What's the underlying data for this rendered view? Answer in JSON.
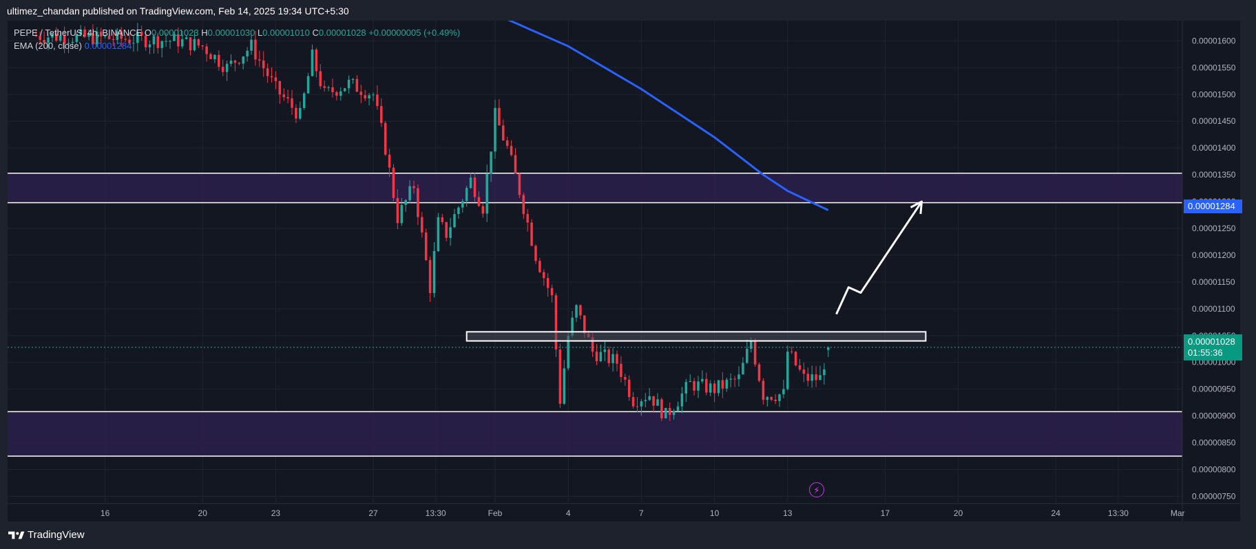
{
  "header": {
    "publisher_text": "ultimez_chandan published on TradingView.com, Feb 14, 2025 19:34 UTC+5:30"
  },
  "legend": {
    "symbol": "PEPE / TetherUS, 4h, BINANCE",
    "open_label": "O",
    "open_value": "0.00001023",
    "high_label": "H",
    "high_value": "0.00001030",
    "low_label": "L",
    "low_value": "0.00001010",
    "close_label": "C",
    "close_value": "0.00001028",
    "change": "+0.00000005 (+0.49%)",
    "ema_label": "EMA (200, close)",
    "ema_value": "0.00001284"
  },
  "price_tags": {
    "ema": "0.00001284",
    "last_price": "0.00001028",
    "countdown": "01:55:36"
  },
  "footer": {
    "brand": "TradingView"
  },
  "colors": {
    "background": "#131722",
    "up": "#26a69a",
    "down": "#f23645",
    "ema": "#2962ff",
    "zone_fill": "#2a1f4a",
    "box_fill": "#4a4f5c",
    "drawing": "#ffffff"
  },
  "icons": {
    "lightning": "lightning-icon",
    "logo": "tradingview-logo-icon"
  },
  "chart_data": {
    "type": "candlestick",
    "title": "PEPE / TetherUS, 4h, BINANCE",
    "y_axis": {
      "ylim": [
        7.3e-06,
        1.63e-05
      ],
      "tick_values": [
        7.5e-06,
        8e-06,
        8.5e-06,
        9e-06,
        9.5e-06,
        1e-05,
        1.05e-05,
        1.1e-05,
        1.15e-05,
        1.2e-05,
        1.25e-05,
        1.3e-05,
        1.35e-05,
        1.4e-05,
        1.45e-05,
        1.5e-05,
        1.55e-05,
        1.6e-05
      ],
      "tick_labels": [
        "0.00000750",
        "0.00000800",
        "0.00000850",
        "0.00000900",
        "0.00000950",
        "0.00001000",
        "0.00001050",
        "0.00001100",
        "0.00001150",
        "0.00001200",
        "0.00001250",
        "0.00001300",
        "0.00001350",
        "0.00001400",
        "0.00001450",
        "0.00001500",
        "0.00001550",
        "0.00001600"
      ],
      "position": "right"
    },
    "x_axis": {
      "xlim": [
        "2025-01-12",
        "2025-03-03"
      ],
      "ticks": [
        {
          "date": "2025-01-16",
          "label": "16"
        },
        {
          "date": "2025-01-20",
          "label": "20"
        },
        {
          "date": "2025-01-23",
          "label": "23"
        },
        {
          "date": "2025-01-27",
          "label": "27"
        },
        {
          "date": "2025-01-29 13:30",
          "label": "13:30"
        },
        {
          "date": "2025-02-01",
          "label": "Feb"
        },
        {
          "date": "2025-02-04",
          "label": "4"
        },
        {
          "date": "2025-02-07",
          "label": "7"
        },
        {
          "date": "2025-02-10",
          "label": "10"
        },
        {
          "date": "2025-02-13",
          "label": "13"
        },
        {
          "date": "2025-02-17",
          "label": "17"
        },
        {
          "date": "2025-02-20",
          "label": "20"
        },
        {
          "date": "2025-02-24",
          "label": "24"
        },
        {
          "date": "2025-02-26 13:30",
          "label": "13:30"
        },
        {
          "date": "2025-03-01",
          "label": "Mar"
        }
      ]
    },
    "grid": true,
    "legend_position": "top-left",
    "anchor_points": [
      {
        "date": "2025-01-13",
        "price": 1.61e-05
      },
      {
        "date": "2025-01-19",
        "price": 1.6e-05
      },
      {
        "date": "2025-01-20",
        "price": 1.59e-05
      },
      {
        "date": "2025-01-21",
        "price": 1.55e-05
      },
      {
        "date": "2025-01-22",
        "price": 1.59e-05
      },
      {
        "date": "2025-01-23",
        "price": 1.51e-05
      },
      {
        "date": "2025-01-24",
        "price": 1.46e-05
      },
      {
        "date": "2025-01-24 12:00",
        "price": 1.57e-05
      },
      {
        "date": "2025-01-25",
        "price": 1.5e-05
      },
      {
        "date": "2025-01-26",
        "price": 1.52e-05
      },
      {
        "date": "2025-01-27",
        "price": 1.5e-05
      },
      {
        "date": "2025-01-27 12:00",
        "price": 1.4e-05
      },
      {
        "date": "2025-01-28",
        "price": 1.27e-05
      },
      {
        "date": "2025-01-28 16:00",
        "price": 1.33e-05
      },
      {
        "date": "2025-01-29 08:00",
        "price": 1.14e-05
      },
      {
        "date": "2025-01-29 16:00",
        "price": 1.26e-05
      },
      {
        "date": "2025-01-30",
        "price": 1.24e-05
      },
      {
        "date": "2025-01-31",
        "price": 1.34e-05
      },
      {
        "date": "2025-01-31 12:00",
        "price": 1.29e-05
      },
      {
        "date": "2025-02-01",
        "price": 1.46e-05
      },
      {
        "date": "2025-02-01 12:00",
        "price": 1.4e-05
      },
      {
        "date": "2025-02-02",
        "price": 1.32e-05
      },
      {
        "date": "2025-02-02 16:00",
        "price": 1.2e-05
      },
      {
        "date": "2025-02-03 08:00",
        "price": 1.12e-05
      },
      {
        "date": "2025-02-03 16:00",
        "price": 9.3e-06
      },
      {
        "date": "2025-02-04",
        "price": 1.05e-05
      },
      {
        "date": "2025-02-04 08:00",
        "price": 1.1e-05
      },
      {
        "date": "2025-02-05",
        "price": 1.02e-05
      },
      {
        "date": "2025-02-06",
        "price": 1e-05
      },
      {
        "date": "2025-02-06 16:00",
        "price": 9.3e-06
      },
      {
        "date": "2025-02-07 08:00",
        "price": 9.4e-06
      },
      {
        "date": "2025-02-08",
        "price": 9e-06
      },
      {
        "date": "2025-02-09",
        "price": 9.6e-06
      },
      {
        "date": "2025-02-10",
        "price": 9.5e-06
      },
      {
        "date": "2025-02-11",
        "price": 9.7e-06
      },
      {
        "date": "2025-02-11 12:00",
        "price": 1.04e-05
      },
      {
        "date": "2025-02-12",
        "price": 9.4e-06
      },
      {
        "date": "2025-02-12 20:00",
        "price": 9.4e-06
      },
      {
        "date": "2025-02-13",
        "price": 1.02e-05
      },
      {
        "date": "2025-02-13 16:00",
        "price": 9.7e-06
      },
      {
        "date": "2025-02-14 08:00",
        "price": 9.7e-06
      },
      {
        "date": "2025-02-14 16:00",
        "price": 1.028e-05
      }
    ],
    "ema_200": [
      {
        "date": "2025-02-01",
        "price": 1.65e-05
      },
      {
        "date": "2025-02-04",
        "price": 1.59e-05
      },
      {
        "date": "2025-02-07",
        "price": 1.51e-05
      },
      {
        "date": "2025-02-10",
        "price": 1.42e-05
      },
      {
        "date": "2025-02-12",
        "price": 1.35e-05
      },
      {
        "date": "2025-02-13",
        "price": 1.32e-05
      },
      {
        "date": "2025-02-14 16:00",
        "price": 1.284e-05
      }
    ],
    "zones": [
      {
        "name": "resistance-zone",
        "top": 1.353e-05,
        "bottom": 1.298e-05
      },
      {
        "name": "support-zone",
        "top": 9.08e-06,
        "bottom": 8.25e-06
      }
    ],
    "range_box": {
      "top": 1.057e-05,
      "bottom": 1.04e-05,
      "start": "2025-01-30 20:00",
      "end": "2025-02-18 16:00"
    },
    "projection_path": [
      {
        "date": "2025-02-15",
        "price": 1.09e-05
      },
      {
        "date": "2025-02-15 12:00",
        "price": 1.14e-05
      },
      {
        "date": "2025-02-16",
        "price": 1.13e-05
      },
      {
        "date": "2025-02-18 12:00",
        "price": 1.3e-05
      }
    ],
    "last_price": 1.028e-05
  }
}
